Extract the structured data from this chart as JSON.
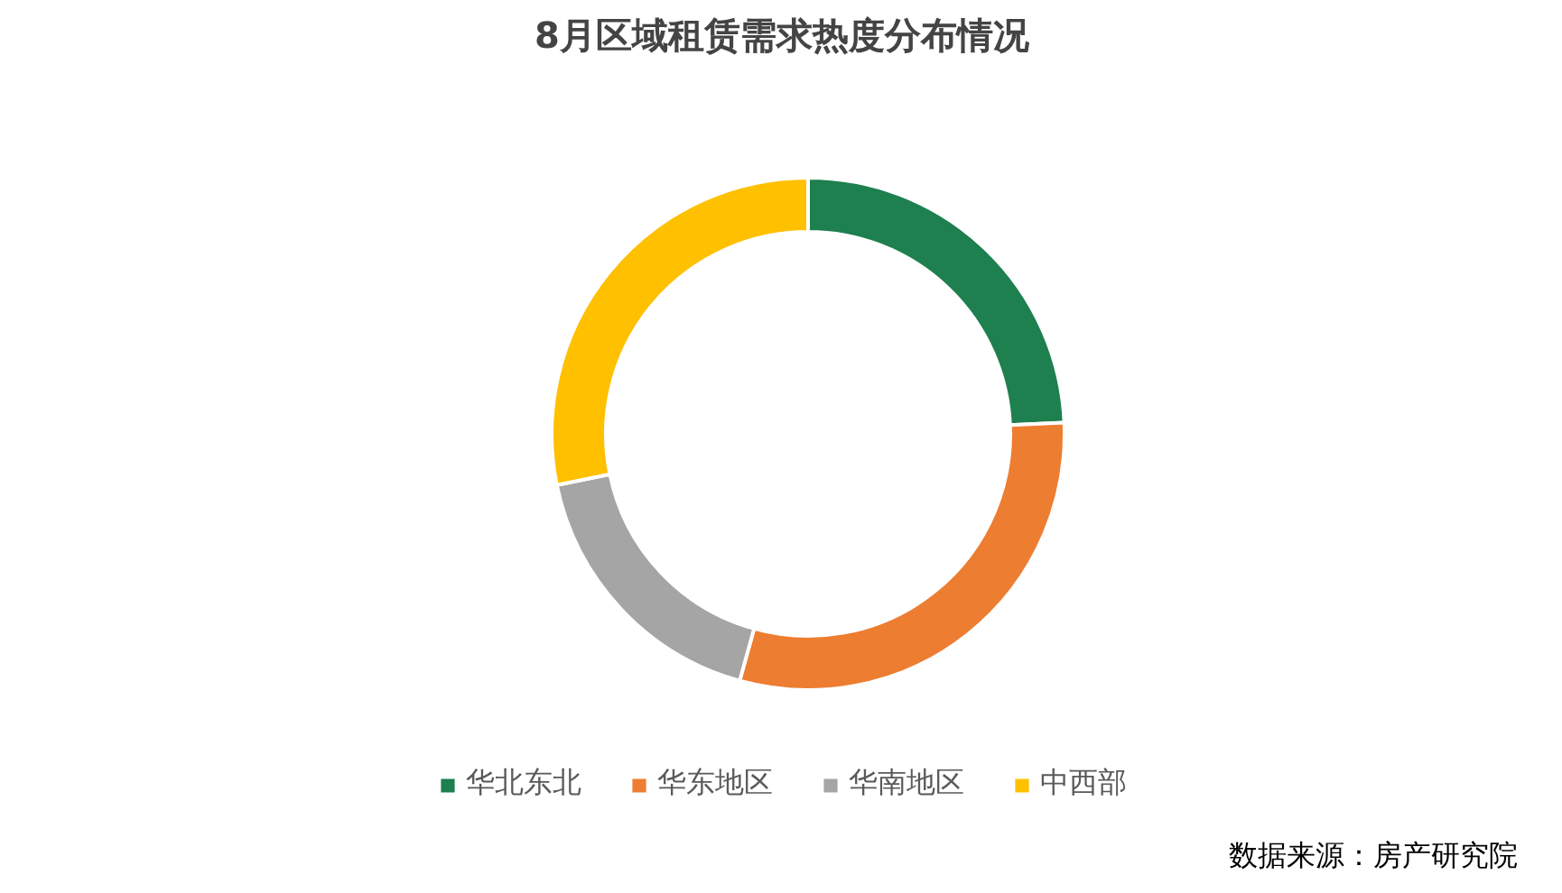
{
  "chart_data": {
    "type": "donut",
    "title": "8月区域租赁需求热度分布情况",
    "categories": [
      "华北东北",
      "华东地区",
      "华南地区",
      "中西部"
    ],
    "values": [
      24.3,
      30.0,
      17.5,
      28.2
    ],
    "colors": [
      "#1e7f4f",
      "#ed7d31",
      "#a5a5a5",
      "#ffc000"
    ],
    "legend": "bottom",
    "annotations": [
      "数据来源：房产研究院"
    ]
  }
}
